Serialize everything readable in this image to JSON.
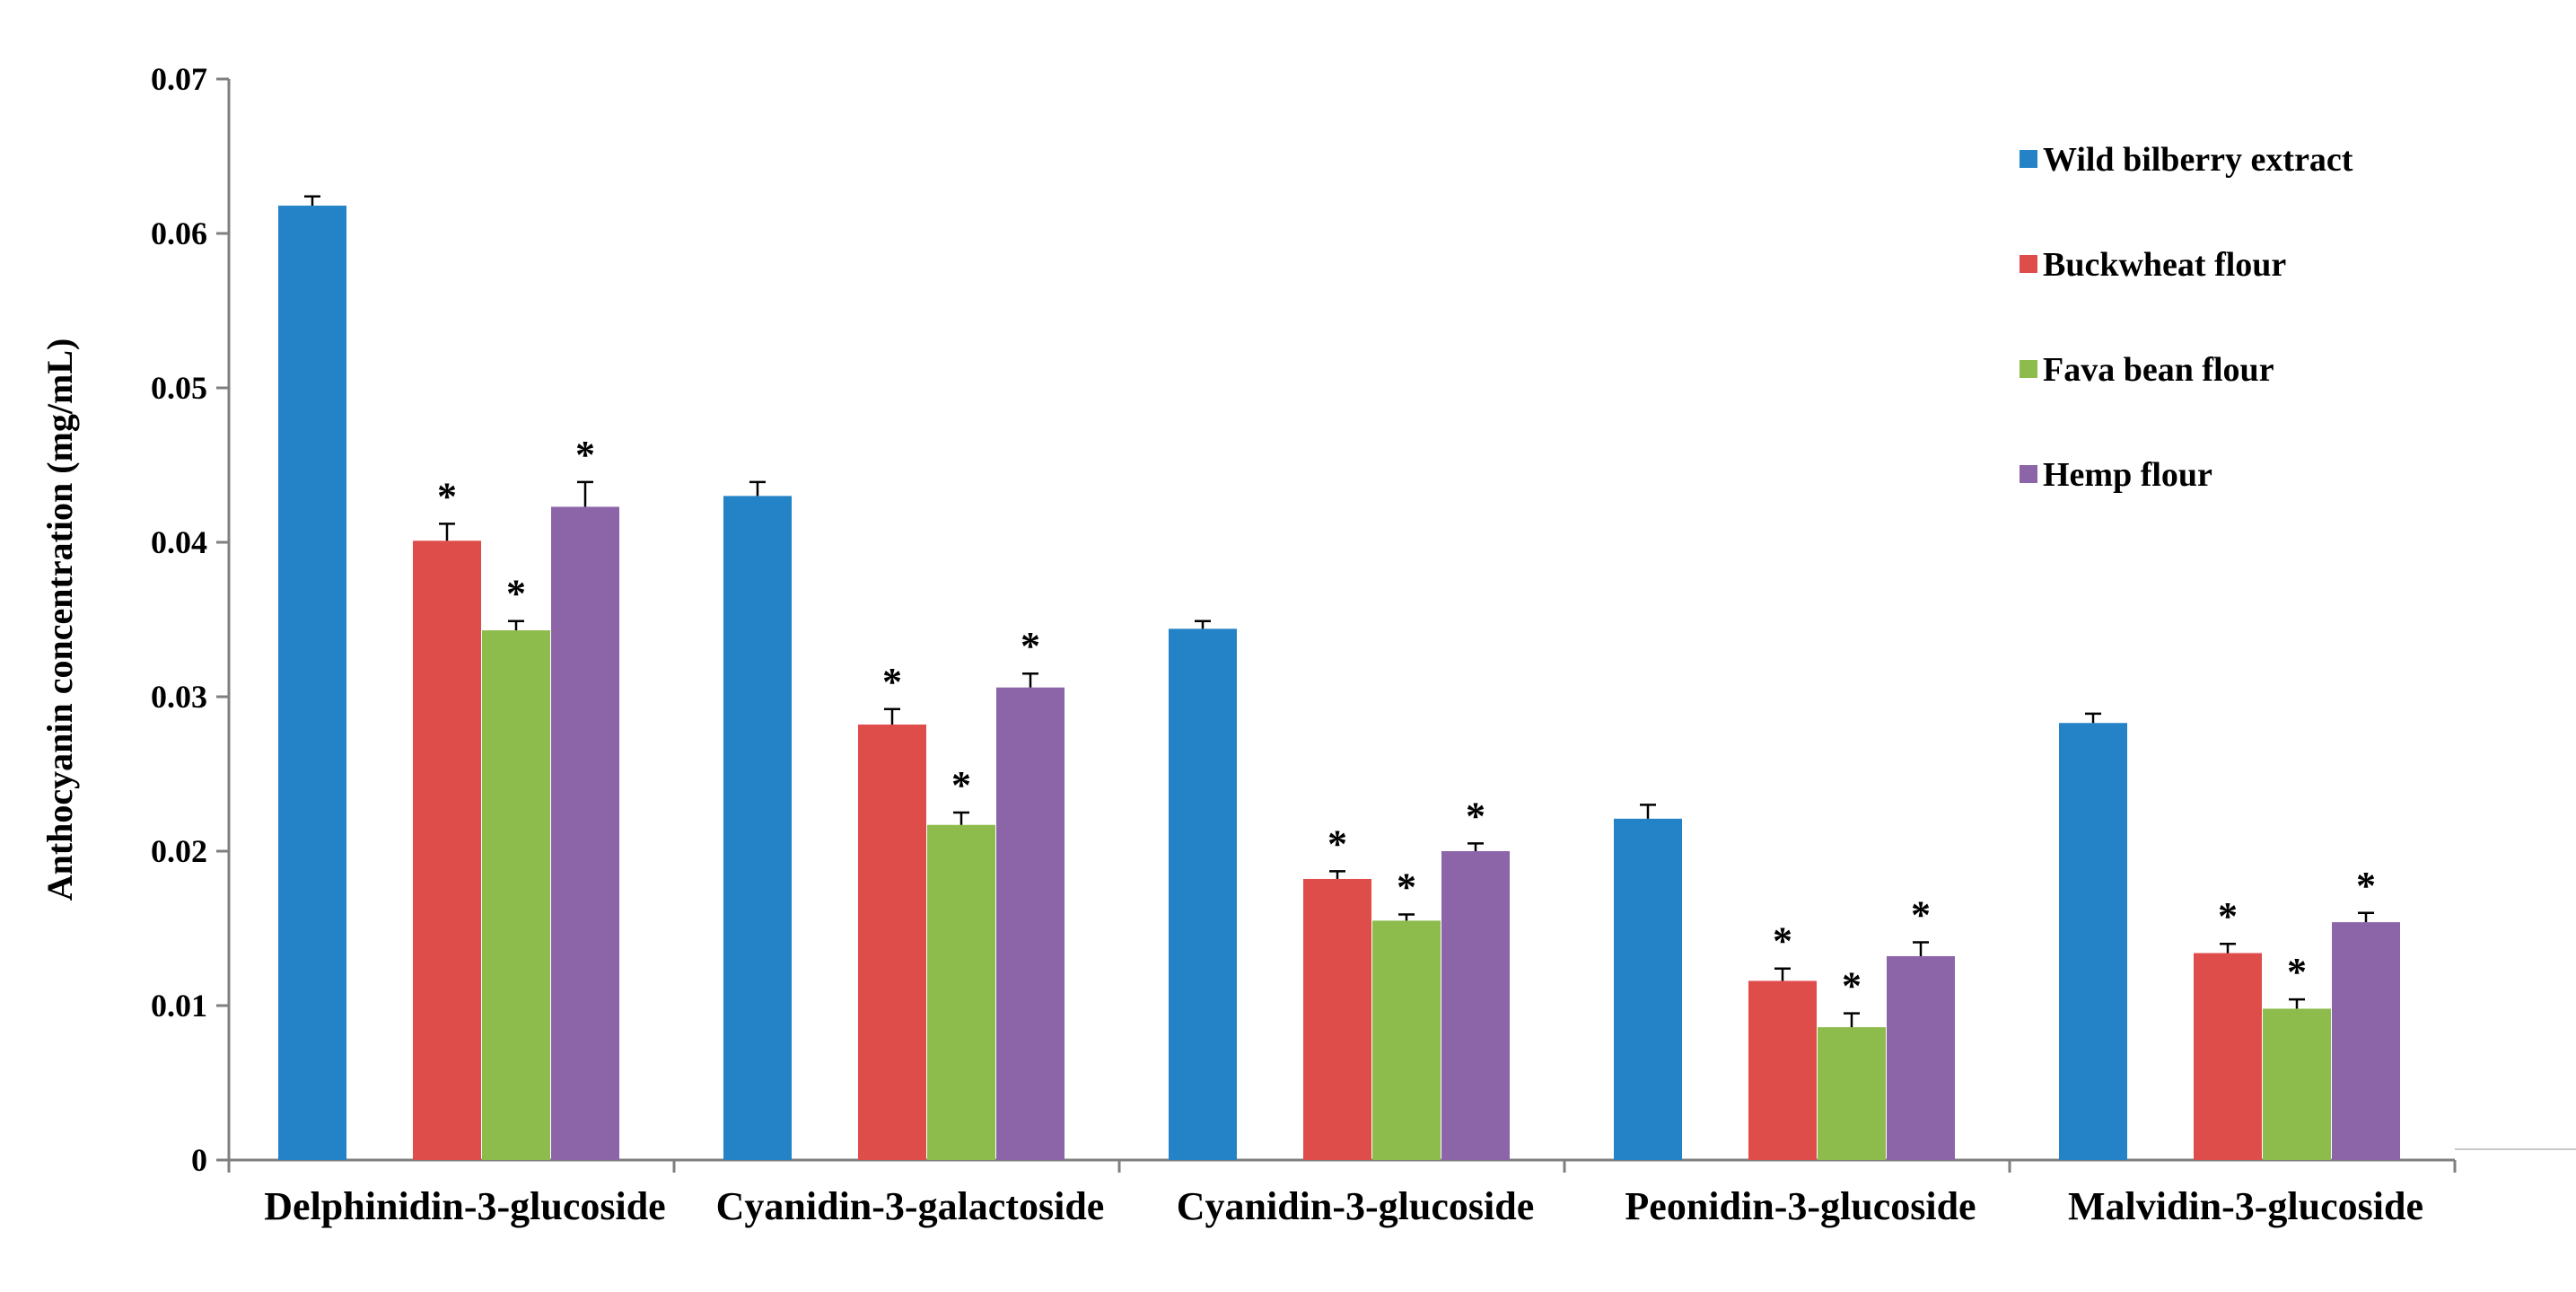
{
  "chart_data": {
    "type": "bar",
    "title": "",
    "xlabel": "",
    "ylabel": "Anthocyanin concentration (mg/mL)",
    "ylim": [
      0,
      0.07
    ],
    "yticks": [
      0,
      0.01,
      0.02,
      0.03,
      0.04,
      0.05,
      0.06,
      0.07
    ],
    "ytick_labels": [
      "0",
      "0.01",
      "0.02",
      "0.03",
      "0.04",
      "0.05",
      "0.06",
      "0.07"
    ],
    "grid": false,
    "legend_position": "top-right",
    "significance_marker": "*",
    "categories": [
      "Delphinidin-3-glucoside",
      "Cyanidin-3-galactoside",
      "Cyanidin-3-glucoside",
      "Peonidin-3-glucoside",
      "Malvidin-3-glucoside"
    ],
    "series": [
      {
        "name": "Wild bilberry extract",
        "color": "#2383c6",
        "values": [
          0.0618,
          0.043,
          0.0344,
          0.0221,
          0.0283
        ],
        "errors": [
          0.0006,
          0.0009,
          0.0005,
          0.0009,
          0.0006
        ],
        "significant": [
          false,
          false,
          false,
          false,
          false
        ]
      },
      {
        "name": "Buckwheat flour",
        "color": "#df4d4b",
        "values": [
          0.0401,
          0.0282,
          0.0182,
          0.0116,
          0.0134
        ],
        "errors": [
          0.0011,
          0.001,
          0.0005,
          0.0008,
          0.0006
        ],
        "significant": [
          true,
          true,
          true,
          true,
          true
        ]
      },
      {
        "name": "Fava bean flour",
        "color": "#8dbb4c",
        "values": [
          0.0343,
          0.0217,
          0.0155,
          0.0086,
          0.0098
        ],
        "errors": [
          0.0006,
          0.0008,
          0.0004,
          0.0009,
          0.0006
        ],
        "significant": [
          true,
          true,
          true,
          true,
          true
        ]
      },
      {
        "name": "Hemp flour",
        "color": "#8c65a8",
        "values": [
          0.0423,
          0.0306,
          0.02,
          0.0132,
          0.0154
        ],
        "errors": [
          0.0016,
          0.0009,
          0.0005,
          0.0009,
          0.0006
        ],
        "significant": [
          true,
          true,
          true,
          true,
          true
        ]
      }
    ]
  }
}
